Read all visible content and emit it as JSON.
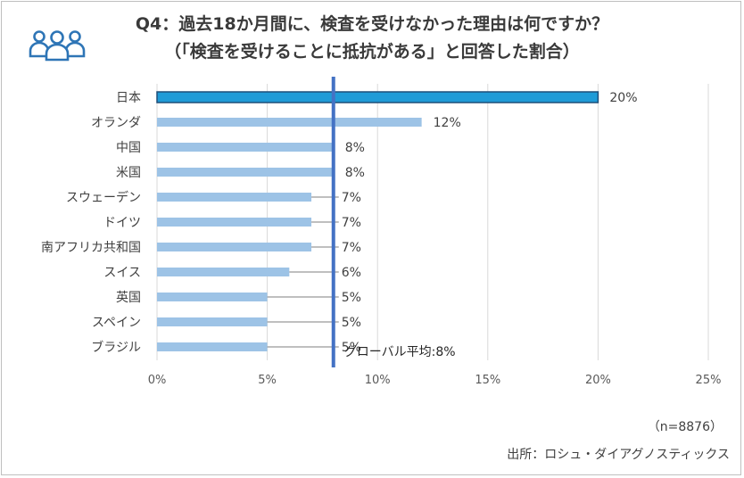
{
  "header": {
    "title_line1": "Q4：過去18か月間に、検査を受けなかった理由は何ですか？",
    "title_line2": "（「検査を受けることに抵抗がある」と回答した割合）",
    "icon": "people-group-icon"
  },
  "chart_data": {
    "type": "bar",
    "orientation": "horizontal",
    "categories": [
      "日本",
      "オランダ",
      "中国",
      "米国",
      "スウェーデン",
      "ドイツ",
      "南アフリカ共和国",
      "スイス",
      "英国",
      "スペイン",
      "ブラジル"
    ],
    "values": [
      20,
      12,
      8,
      8,
      7,
      7,
      7,
      6,
      5,
      5,
      5
    ],
    "data_labels": [
      "20%",
      "12%",
      "8%",
      "8%",
      "7%",
      "7%",
      "7%",
      "6%",
      "5%",
      "5%",
      "5%"
    ],
    "highlight_category": "日本",
    "x_ticks": [
      0,
      5,
      10,
      15,
      20,
      25
    ],
    "x_tick_labels": [
      "0%",
      "5%",
      "10%",
      "15%",
      "20%",
      "25%"
    ],
    "xlim": [
      0,
      25
    ],
    "reference_line": {
      "value": 8,
      "label": "グローバル平均:8%"
    },
    "colors": {
      "bar": "#9dc3e6",
      "highlight_bar": "#1f9bd7",
      "highlight_border": "#1f4e79",
      "reference": "#4472c4",
      "grid": "#d9d9d9"
    },
    "grid": true,
    "title": "",
    "xlabel": "",
    "ylabel": ""
  },
  "footer": {
    "sample_size": "（n=8876）",
    "source": "出所：ロシュ・ダイアグノスティックス"
  }
}
